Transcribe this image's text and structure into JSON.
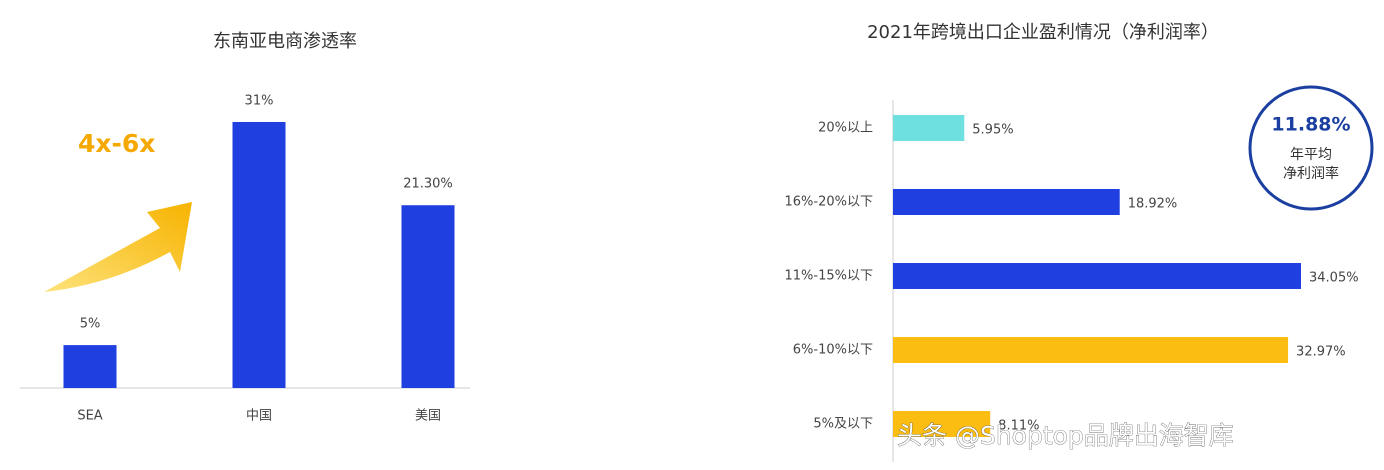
{
  "chart_data": [
    {
      "type": "bar",
      "title": "东南亚电商渗透率",
      "categories": [
        "SEA",
        "中国",
        "美国"
      ],
      "values": [
        5,
        31,
        21.3
      ],
      "value_labels": [
        "5%",
        "31%",
        "21.30%"
      ],
      "color": "#1f3fe0",
      "annotation": "4x-6x"
    },
    {
      "type": "bar",
      "horizontal": true,
      "title": "2021年跨境出口企业盈利情况（净利润率）",
      "categories": [
        "20%以上",
        "16%-20%以下",
        "11%-15%以下",
        "6%-10%以下",
        "5%及以下"
      ],
      "values": [
        5.95,
        18.92,
        34.05,
        32.97,
        8.11
      ],
      "value_labels": [
        "5.95%",
        "18.92%",
        "34.05%",
        "32.97%",
        "8.11%"
      ],
      "colors": [
        "#6ee0df",
        "#1f3fe0",
        "#1f3fe0",
        "#fcbd12",
        "#fcbd12"
      ],
      "annotations": [
        "11.88%",
        "年平均",
        "净利润率"
      ]
    }
  ],
  "watermark": "头条 @Shoptop品牌出海智库"
}
